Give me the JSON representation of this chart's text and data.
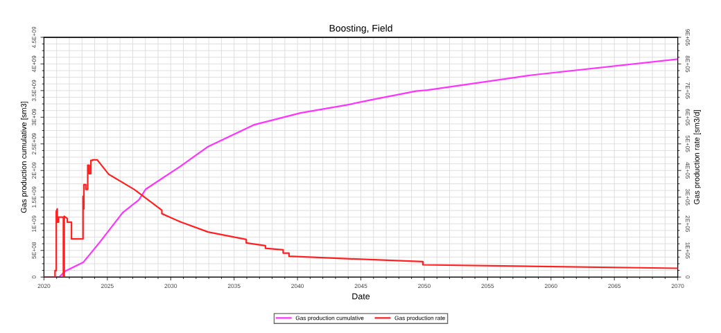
{
  "chart_data": {
    "type": "line",
    "title": "Boosting, Field",
    "xlabel": "Date",
    "ylabel": "Gas production cumulative [sm3]",
    "y2label": "Gas production rate [sm3/d]",
    "xlim": [
      2020,
      2070
    ],
    "xticks": [
      2020,
      2025,
      2030,
      2035,
      2040,
      2045,
      2050,
      2055,
      2060,
      2065,
      2070
    ],
    "ylim": [
      0,
      4500000000
    ],
    "yticks": [
      {
        "value": 0,
        "label": "0"
      },
      {
        "value": 500000000,
        "label": "5E+08"
      },
      {
        "value": 1000000000,
        "label": "1E+09"
      },
      {
        "value": 1500000000,
        "label": "1.5E+09"
      },
      {
        "value": 2000000000,
        "label": "2E+09"
      },
      {
        "value": 2500000000,
        "label": "2.5E+09"
      },
      {
        "value": 3000000000,
        "label": "3E+09"
      },
      {
        "value": 3500000000,
        "label": "3.5E+09"
      },
      {
        "value": 4000000000,
        "label": "4E+09"
      },
      {
        "value": 4500000000,
        "label": "4.5E+09"
      }
    ],
    "y2lim": [
      0,
      900000
    ],
    "y2ticks": [
      {
        "value": 0,
        "label": "0"
      },
      {
        "value": 100000,
        "label": "1E+05"
      },
      {
        "value": 200000,
        "label": "2E+05"
      },
      {
        "value": 300000,
        "label": "3E+05"
      },
      {
        "value": 400000,
        "label": "4E+05"
      },
      {
        "value": 500000,
        "label": "5E+05"
      },
      {
        "value": 600000,
        "label": "6E+05"
      },
      {
        "value": 700000,
        "label": "7E+05"
      },
      {
        "value": 800000,
        "label": "8E+05"
      },
      {
        "value": 900000,
        "label": "9E+05"
      }
    ],
    "grid": true,
    "legend": "bottom",
    "marker": "none",
    "line_style": "solid",
    "series": [
      {
        "name": "Gas production cumulative",
        "color": "#ff33ff",
        "x": [
          2020,
          2020.9,
          2021.2,
          2021.66,
          2023.11,
          2024.39,
          2026.21,
          2027.49,
          2028.03,
          2030.77,
          2032.95,
          2036.6,
          2040.24,
          2043.88,
          2045.7,
          2049.34,
          2050.25,
          2058.45,
          2070
        ],
        "values": [
          0,
          0,
          0,
          110000000,
          280000000,
          650000000,
          1210000000,
          1450000000,
          1650000000,
          2080000000,
          2450000000,
          2860000000,
          3080000000,
          3230000000,
          3320000000,
          3490000000,
          3510000000,
          3790000000,
          4090000000
        ]
      },
      {
        "name": "Gas production rate",
        "color": "#ff2020",
        "axis": "y2",
        "x": [
          2020,
          2020.87,
          2020.87,
          2020.97,
          2020.97,
          2021.05,
          2021.05,
          2021.15,
          2021.15,
          2021.53,
          2021.53,
          2021.6,
          2021.6,
          2021.84,
          2021.84,
          2022.17,
          2022.17,
          2023.08,
          2023.08,
          2023.15,
          2023.15,
          2023.3,
          2023.3,
          2023.45,
          2023.45,
          2023.57,
          2023.57,
          2023.7,
          2023.7,
          2023.84,
          2023.84,
          2024.2,
          2025.1,
          2027.12,
          2029.3,
          2029.3,
          2030.77,
          2032.95,
          2035.96,
          2035.96,
          2037.47,
          2037.47,
          2038.87,
          2038.87,
          2039.33,
          2039.33,
          2043.88,
          2049.89,
          2049.89,
          2070
        ],
        "values": [
          0,
          0,
          24000,
          24000,
          247000,
          256000,
          206000,
          206000,
          225000,
          225000,
          0,
          0,
          228000,
          220000,
          206000,
          206000,
          143000,
          143000,
          303000,
          256000,
          347000,
          347000,
          329000,
          329000,
          420000,
          420000,
          388000,
          388000,
          438000,
          438000,
          440000,
          440000,
          386000,
          329000,
          251000,
          238000,
          207000,
          169000,
          141000,
          128000,
          118000,
          108000,
          102000,
          90000,
          90000,
          78000,
          69000,
          58000,
          46000,
          33000
        ]
      }
    ]
  }
}
